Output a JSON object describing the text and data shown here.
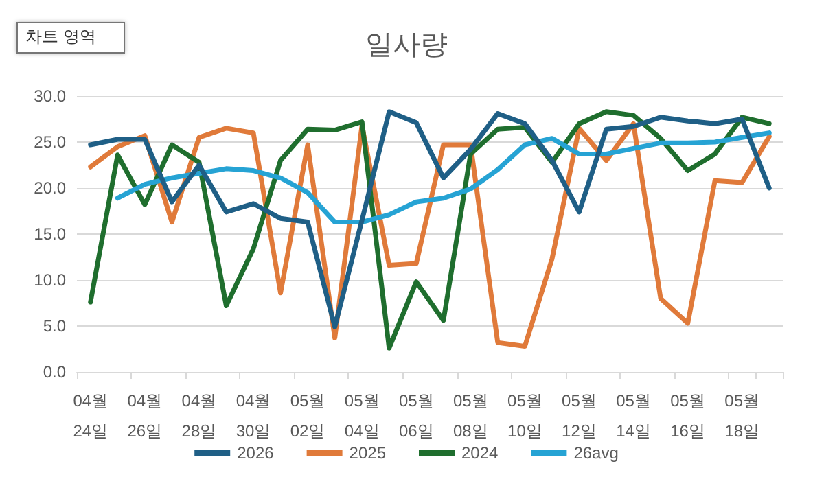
{
  "chart_data": {
    "type": "line",
    "title": "일사량",
    "annotations": [
      "차트 영역"
    ],
    "categories": [
      "04월\n24일",
      null,
      "04월\n26일",
      null,
      "04월\n28일",
      null,
      "04월\n30일",
      null,
      "05월\n02일",
      null,
      "05월\n04일",
      null,
      "05월\n06일",
      null,
      "05월\n08일",
      null,
      "05월\n10일",
      null,
      "05월\n12일",
      null,
      "05월\n14일",
      null,
      "05월\n16일",
      null,
      "05월\n18일",
      null
    ],
    "series": [
      {
        "name": "2026",
        "color": "#1f5f86",
        "values": [
          24.7,
          25.3,
          25.3,
          18.5,
          22.5,
          17.4,
          18.3,
          16.7,
          16.3,
          4.9,
          16.5,
          28.3,
          27.1,
          21.1,
          24.2,
          28.1,
          27.0,
          23.0,
          17.4,
          26.4,
          26.7,
          27.7,
          27.3,
          27.0,
          27.5,
          20.0
        ]
      },
      {
        "name": "2025",
        "color": "#e07a3a",
        "values": [
          22.3,
          24.5,
          25.7,
          16.3,
          25.5,
          26.5,
          26.0,
          8.6,
          24.7,
          3.7,
          26.8,
          11.6,
          11.8,
          24.7,
          24.7,
          3.2,
          2.8,
          12.3,
          26.5,
          23.0,
          27.0,
          8.0,
          5.3,
          20.8,
          20.6,
          25.6
        ]
      },
      {
        "name": "2024",
        "color": "#1f6e2e",
        "values": [
          7.6,
          23.6,
          18.2,
          24.7,
          22.8,
          7.2,
          13.4,
          23.0,
          26.4,
          26.3,
          27.2,
          2.6,
          9.8,
          5.6,
          23.7,
          26.4,
          26.6,
          22.8,
          27.0,
          28.3,
          27.9,
          25.4,
          21.9,
          23.7,
          27.7,
          27.0
        ]
      },
      {
        "name": "26avg",
        "color": "#26a3d4",
        "values": [
          null,
          18.9,
          20.4,
          21.1,
          21.6,
          22.1,
          21.9,
          21.1,
          19.5,
          16.3,
          16.3,
          17.1,
          18.5,
          18.9,
          19.9,
          22.0,
          24.7,
          25.4,
          23.7,
          23.7,
          24.3,
          24.9,
          24.9,
          25.0,
          25.5,
          26.0
        ]
      }
    ],
    "ylim": [
      0,
      30
    ],
    "yticks": [
      {
        "value": 0,
        "label": "0.0"
      },
      {
        "value": 5,
        "label": "5.0"
      },
      {
        "value": 10,
        "label": "10.0"
      },
      {
        "value": 15,
        "label": "15.0"
      },
      {
        "value": 20,
        "label": "20.0"
      },
      {
        "value": 25,
        "label": "25.0"
      },
      {
        "value": 30,
        "label": "30.0"
      }
    ],
    "grid": "y",
    "legend": "bottom",
    "marker": "none",
    "line_style": "solid"
  }
}
